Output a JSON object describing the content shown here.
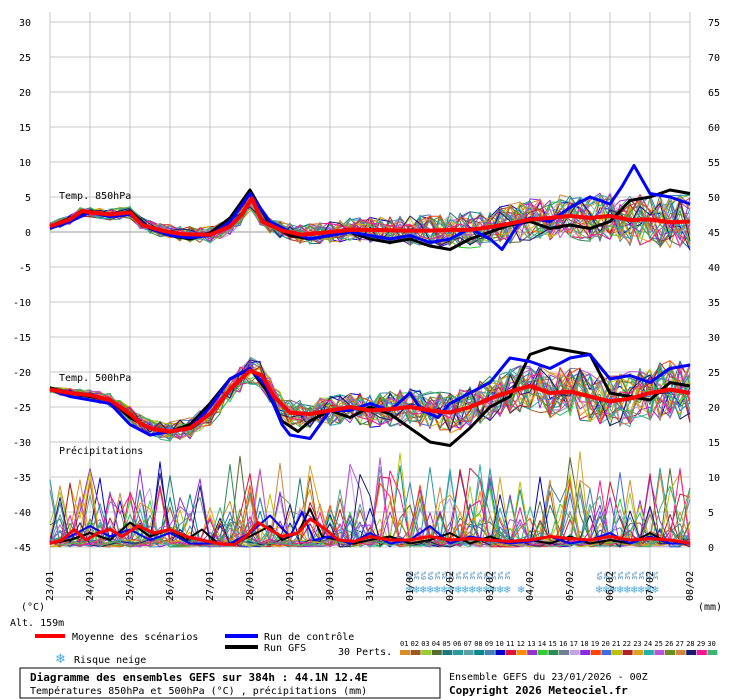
{
  "chart_data": {
    "type": "line",
    "title": "Diagramme des ensembles GEFS sur 384h : 44.1N 12.4E",
    "subtitle": "Températures 850hPa et 500hPa (°C) , précipitations (mm)",
    "run_info": "Ensemble GEFS du 23/01/2026 - 00Z",
    "copyright": "Copyright 2026 Meteociel.fr",
    "left_axis": {
      "unit": "(°C)",
      "ticks": [
        30,
        25,
        20,
        15,
        10,
        5,
        0,
        -5,
        -10,
        -15,
        -20,
        -25,
        -30,
        -35,
        -40,
        -45
      ],
      "range": [
        -45,
        30
      ]
    },
    "right_axis": {
      "unit": "(mm)",
      "ticks": [
        75,
        70,
        65,
        60,
        55,
        50,
        45,
        40,
        35,
        30,
        25,
        20,
        15,
        10,
        5,
        0
      ],
      "range": [
        0,
        75
      ]
    },
    "x_labels": [
      "23/01",
      "24/01",
      "25/01",
      "26/01",
      "27/01",
      "28/01",
      "29/01",
      "30/01",
      "31/01",
      "01/02",
      "02/02",
      "03/02",
      "04/02",
      "05/02",
      "06/02",
      "07/02",
      "08/02"
    ],
    "panel_labels": {
      "t850": "Temp. 850hPa",
      "t500": "Temp. 500hPa",
      "precip": "Précipitations"
    },
    "altitude": "Alt. 159m",
    "snow_risk": {
      "blocks": [
        {
          "start_day": 9.0,
          "labels": [
            "6%",
            "3%",
            "6%",
            "6%",
            "3%",
            "3%",
            "3%",
            "3%",
            "3%",
            "3%",
            "3%",
            "3%",
            "3%",
            "3%",
            "3%"
          ]
        },
        {
          "start_day": 11.8,
          "labels": [
            ""
          ]
        },
        {
          "start_day": 13.75,
          "labels": [
            "6%",
            "3%",
            "3%",
            "3%",
            "3%",
            "3%",
            "3%",
            "3%",
            "3%"
          ]
        }
      ]
    },
    "legend": {
      "mean": "Moyenne des scénarios",
      "control": "Run de contrôle",
      "gfs": "Run GFS",
      "snow": "Risque neige",
      "perts_label": "30 Perts.",
      "pert_numbers": [
        "01",
        "02",
        "03",
        "04",
        "05",
        "06",
        "07",
        "08",
        "09",
        "10",
        "11",
        "12",
        "13",
        "14",
        "15",
        "16",
        "17",
        "18",
        "19",
        "20",
        "21",
        "22",
        "23",
        "24",
        "25",
        "26",
        "27",
        "28",
        "29",
        "30"
      ]
    },
    "colors": {
      "mean": "#ff0000",
      "control": "#0000ff",
      "gfs": "#000000",
      "snow": "#4aa8e0",
      "perts": [
        "#d98c2a",
        "#9a5a1a",
        "#9acd32",
        "#556b2f",
        "#1e7a7a",
        "#2a9a9a",
        "#5f9ea0",
        "#008b8b",
        "#4682b4",
        "#0000cd",
        "#dc143c",
        "#ff8c00",
        "#9932cc",
        "#32cd32",
        "#2e8b57",
        "#708090",
        "#bfa6e0",
        "#8a2be2",
        "#ff4500",
        "#4169e1",
        "#c0c000",
        "#b22222",
        "#daa520",
        "#20b2aa",
        "#ba55d3",
        "#6b8e23",
        "#cd853f",
        "#191970",
        "#ff1493",
        "#3cb371"
      ]
    },
    "series": {
      "t850_mean": [
        [
          0,
          0.8
        ],
        [
          0.5,
          1.8
        ],
        [
          0.8,
          3.0
        ],
        [
          1.0,
          2.8
        ],
        [
          1.5,
          2.5
        ],
        [
          2.0,
          2.8
        ],
        [
          2.3,
          1.0
        ],
        [
          2.8,
          0.2
        ],
        [
          3.3,
          -0.3
        ],
        [
          4.0,
          -0.4
        ],
        [
          4.5,
          0.8
        ],
        [
          4.8,
          2.5
        ],
        [
          5.05,
          4.8
        ],
        [
          5.3,
          1.5
        ],
        [
          5.8,
          0.2
        ],
        [
          6.3,
          -0.4
        ],
        [
          7.0,
          0.0
        ],
        [
          7.5,
          0.3
        ],
        [
          8.0,
          0.3
        ],
        [
          9.0,
          0.2
        ],
        [
          9.5,
          0.2
        ],
        [
          10.0,
          0.3
        ],
        [
          10.5,
          0.3
        ],
        [
          11.0,
          0.7
        ],
        [
          11.5,
          1.2
        ],
        [
          12.0,
          1.8
        ],
        [
          12.5,
          2.0
        ],
        [
          13.0,
          2.3
        ],
        [
          13.5,
          2.0
        ],
        [
          14.0,
          2.3
        ],
        [
          14.5,
          1.7
        ],
        [
          15.0,
          1.8
        ],
        [
          15.5,
          1.4
        ],
        [
          16.0,
          1.5
        ]
      ],
      "t850_control": [
        [
          0,
          0.5
        ],
        [
          0.5,
          1.5
        ],
        [
          1.0,
          2.8
        ],
        [
          1.5,
          2.2
        ],
        [
          2.0,
          2.5
        ],
        [
          2.5,
          0.5
        ],
        [
          3.0,
          -0.5
        ],
        [
          3.5,
          -0.8
        ],
        [
          4.0,
          -0.5
        ],
        [
          4.5,
          1.5
        ],
        [
          5.0,
          5.5
        ],
        [
          5.5,
          1.5
        ],
        [
          6.0,
          0.0
        ],
        [
          6.5,
          -1.0
        ],
        [
          7.0,
          -0.5
        ],
        [
          7.5,
          0.0
        ],
        [
          8.0,
          -0.5
        ],
        [
          8.5,
          -1.0
        ],
        [
          9.0,
          -0.5
        ],
        [
          9.5,
          -1.5
        ],
        [
          10.0,
          -1.0
        ],
        [
          10.5,
          0.5
        ],
        [
          11.0,
          -1.0
        ],
        [
          11.3,
          -2.5
        ],
        [
          11.7,
          1.0
        ],
        [
          12.0,
          2.0
        ],
        [
          12.5,
          1.5
        ],
        [
          13.0,
          3.5
        ],
        [
          13.5,
          5.0
        ],
        [
          14.0,
          4.0
        ],
        [
          14.3,
          6.5
        ],
        [
          14.6,
          9.5
        ],
        [
          15.0,
          5.5
        ],
        [
          15.5,
          5.0
        ],
        [
          16.0,
          4.0
        ]
      ],
      "t850_gfs": [
        [
          0,
          0.8
        ],
        [
          0.5,
          2.0
        ],
        [
          1.0,
          3.0
        ],
        [
          1.5,
          2.2
        ],
        [
          2.0,
          3.0
        ],
        [
          2.5,
          0.5
        ],
        [
          3.0,
          -0.5
        ],
        [
          3.5,
          -1.0
        ],
        [
          4.0,
          -0.2
        ],
        [
          4.5,
          2.0
        ],
        [
          5.0,
          6.0
        ],
        [
          5.5,
          1.0
        ],
        [
          6.0,
          -0.5
        ],
        [
          6.5,
          -1.0
        ],
        [
          7.0,
          -0.5
        ],
        [
          7.5,
          0.0
        ],
        [
          8.0,
          -1.0
        ],
        [
          8.5,
          -1.5
        ],
        [
          9.0,
          -1.0
        ],
        [
          9.5,
          -2.0
        ],
        [
          10.0,
          -2.5
        ],
        [
          10.5,
          -1.0
        ],
        [
          11.0,
          0.0
        ],
        [
          11.5,
          1.0
        ],
        [
          12.0,
          1.5
        ],
        [
          12.5,
          0.5
        ],
        [
          13.0,
          1.0
        ],
        [
          13.5,
          0.5
        ],
        [
          14.0,
          1.5
        ],
        [
          14.5,
          4.5
        ],
        [
          15.0,
          5.0
        ],
        [
          15.5,
          6.0
        ],
        [
          16.0,
          5.5
        ]
      ],
      "t500_mean": [
        [
          0,
          -22.5
        ],
        [
          0.5,
          -23.0
        ],
        [
          1.0,
          -23.3
        ],
        [
          1.5,
          -24.0
        ],
        [
          2.0,
          -26.0
        ],
        [
          2.3,
          -27.5
        ],
        [
          2.6,
          -28.2
        ],
        [
          3.0,
          -28.5
        ],
        [
          3.5,
          -28.0
        ],
        [
          4.0,
          -26.0
        ],
        [
          4.5,
          -22.5
        ],
        [
          5.0,
          -19.8
        ],
        [
          5.3,
          -20.5
        ],
        [
          5.6,
          -23.5
        ],
        [
          6.0,
          -25.8
        ],
        [
          6.5,
          -26.0
        ],
        [
          7.0,
          -25.5
        ],
        [
          7.5,
          -25.0
        ],
        [
          8.0,
          -25.5
        ],
        [
          8.5,
          -25.3
        ],
        [
          9.0,
          -25.0
        ],
        [
          9.5,
          -25.5
        ],
        [
          10.0,
          -25.8
        ],
        [
          10.5,
          -25.0
        ],
        [
          11.0,
          -23.8
        ],
        [
          11.5,
          -22.8
        ],
        [
          12.0,
          -22.0
        ],
        [
          12.5,
          -23.0
        ],
        [
          13.0,
          -22.8
        ],
        [
          13.5,
          -23.5
        ],
        [
          14.0,
          -24.2
        ],
        [
          14.5,
          -23.8
        ],
        [
          15.0,
          -23.0
        ],
        [
          15.5,
          -22.5
        ],
        [
          16.0,
          -23.0
        ]
      ],
      "t500_control": [
        [
          0,
          -22.5
        ],
        [
          0.5,
          -23.5
        ],
        [
          1.0,
          -24.0
        ],
        [
          1.5,
          -24.5
        ],
        [
          2.0,
          -27.5
        ],
        [
          2.5,
          -29.0
        ],
        [
          3.0,
          -28.5
        ],
        [
          3.5,
          -28.0
        ],
        [
          4.0,
          -25.0
        ],
        [
          4.5,
          -21.0
        ],
        [
          5.0,
          -19.5
        ],
        [
          5.4,
          -22.0
        ],
        [
          5.8,
          -27.5
        ],
        [
          6.0,
          -29.0
        ],
        [
          6.5,
          -29.5
        ],
        [
          7.0,
          -25.5
        ],
        [
          7.5,
          -25.5
        ],
        [
          8.0,
          -24.5
        ],
        [
          8.5,
          -25.5
        ],
        [
          9.0,
          -23.0
        ],
        [
          9.3,
          -25.5
        ],
        [
          9.7,
          -26.5
        ],
        [
          10.0,
          -24.5
        ],
        [
          10.5,
          -23.0
        ],
        [
          11.0,
          -21.5
        ],
        [
          11.5,
          -18.0
        ],
        [
          12.0,
          -18.5
        ],
        [
          12.5,
          -19.5
        ],
        [
          13.0,
          -18.0
        ],
        [
          13.5,
          -17.5
        ],
        [
          14.0,
          -21.0
        ],
        [
          14.5,
          -20.5
        ],
        [
          15.0,
          -21.5
        ],
        [
          15.5,
          -19.5
        ],
        [
          16.0,
          -19.0
        ]
      ],
      "t500_gfs": [
        [
          0,
          -22.3
        ],
        [
          0.5,
          -23.0
        ],
        [
          1.0,
          -23.5
        ],
        [
          1.5,
          -24.0
        ],
        [
          2.0,
          -26.5
        ],
        [
          2.5,
          -28.0
        ],
        [
          3.0,
          -28.5
        ],
        [
          3.5,
          -27.5
        ],
        [
          4.0,
          -24.5
        ],
        [
          4.5,
          -21.0
        ],
        [
          5.0,
          -19.5
        ],
        [
          5.4,
          -22.5
        ],
        [
          5.8,
          -27.0
        ],
        [
          6.2,
          -28.5
        ],
        [
          6.5,
          -27.0
        ],
        [
          7.0,
          -25.5
        ],
        [
          7.5,
          -26.5
        ],
        [
          8.0,
          -25.0
        ],
        [
          8.5,
          -26.0
        ],
        [
          9.0,
          -28.0
        ],
        [
          9.5,
          -30.0
        ],
        [
          10.0,
          -30.5
        ],
        [
          10.5,
          -28.0
        ],
        [
          11.0,
          -25.0
        ],
        [
          11.5,
          -23.5
        ],
        [
          12.0,
          -17.5
        ],
        [
          12.5,
          -16.5
        ],
        [
          13.0,
          -17.0
        ],
        [
          13.5,
          -17.5
        ],
        [
          14.0,
          -23.0
        ],
        [
          14.5,
          -23.5
        ],
        [
          15.0,
          -24.0
        ],
        [
          15.5,
          -21.5
        ],
        [
          16.0,
          -22.0
        ]
      ],
      "precip_mean": [
        [
          0,
          0.5
        ],
        [
          0.3,
          1.0
        ],
        [
          0.6,
          2.5
        ],
        [
          0.9,
          1.0
        ],
        [
          1.2,
          2.0
        ],
        [
          1.5,
          2.5
        ],
        [
          1.8,
          1.5
        ],
        [
          2.2,
          3.0
        ],
        [
          2.6,
          2.0
        ],
        [
          3.0,
          2.5
        ],
        [
          3.4,
          1.5
        ],
        [
          3.8,
          1.0
        ],
        [
          4.2,
          0.5
        ],
        [
          4.6,
          0.3
        ],
        [
          4.9,
          1.5
        ],
        [
          5.2,
          3.5
        ],
        [
          5.5,
          2.5
        ],
        [
          5.8,
          1.5
        ],
        [
          6.2,
          2.0
        ],
        [
          6.5,
          4.0
        ],
        [
          6.9,
          2.5
        ],
        [
          7.2,
          1.0
        ],
        [
          7.6,
          0.8
        ],
        [
          8.0,
          1.5
        ],
        [
          8.5,
          1.0
        ],
        [
          9.0,
          1.0
        ],
        [
          9.5,
          1.5
        ],
        [
          10.0,
          1.0
        ],
        [
          10.5,
          1.2
        ],
        [
          11.0,
          1.0
        ],
        [
          11.5,
          0.8
        ],
        [
          12.0,
          1.0
        ],
        [
          12.5,
          1.5
        ],
        [
          13.0,
          1.2
        ],
        [
          13.5,
          1.0
        ],
        [
          14.0,
          1.5
        ],
        [
          14.5,
          1.0
        ],
        [
          15.0,
          1.2
        ],
        [
          15.5,
          1.0
        ],
        [
          16.0,
          0.5
        ]
      ],
      "precip_control": [
        [
          0,
          0.5
        ],
        [
          0.5,
          1.5
        ],
        [
          1.0,
          3.0
        ],
        [
          1.5,
          1.5
        ],
        [
          2.0,
          2.5
        ],
        [
          2.5,
          1.0
        ],
        [
          3.0,
          2.0
        ],
        [
          3.5,
          0.5
        ],
        [
          4.0,
          0.5
        ],
        [
          4.5,
          0.5
        ],
        [
          5.0,
          2.0
        ],
        [
          5.5,
          4.5
        ],
        [
          6.0,
          1.5
        ],
        [
          6.3,
          5.0
        ],
        [
          6.6,
          1.0
        ],
        [
          7.0,
          1.5
        ],
        [
          7.5,
          0.5
        ],
        [
          8.0,
          2.0
        ],
        [
          8.5,
          0.5
        ],
        [
          9.0,
          1.0
        ],
        [
          9.5,
          3.0
        ],
        [
          10.0,
          0.5
        ],
        [
          10.5,
          1.5
        ],
        [
          11.0,
          1.0
        ],
        [
          11.5,
          0.5
        ],
        [
          12.0,
          0.8
        ],
        [
          12.5,
          1.5
        ],
        [
          13.0,
          0.5
        ],
        [
          13.5,
          1.0
        ],
        [
          14.0,
          2.0
        ],
        [
          14.5,
          0.5
        ],
        [
          15.0,
          1.5
        ],
        [
          15.5,
          0.5
        ],
        [
          16.0,
          0.5
        ]
      ],
      "precip_gfs": [
        [
          0,
          0.5
        ],
        [
          0.5,
          1.0
        ],
        [
          1.0,
          2.0
        ],
        [
          1.5,
          1.0
        ],
        [
          2.0,
          3.5
        ],
        [
          2.5,
          1.5
        ],
        [
          3.0,
          2.5
        ],
        [
          3.4,
          1.0
        ],
        [
          3.8,
          2.5
        ],
        [
          4.2,
          0.5
        ],
        [
          4.6,
          0.5
        ],
        [
          5.0,
          1.5
        ],
        [
          5.5,
          3.0
        ],
        [
          5.8,
          1.0
        ],
        [
          6.2,
          2.0
        ],
        [
          6.5,
          5.5
        ],
        [
          6.8,
          1.5
        ],
        [
          7.2,
          1.0
        ],
        [
          7.6,
          0.5
        ],
        [
          8.0,
          1.0
        ],
        [
          8.5,
          1.5
        ],
        [
          9.0,
          0.5
        ],
        [
          9.5,
          1.0
        ],
        [
          10.0,
          2.0
        ],
        [
          10.5,
          0.5
        ],
        [
          11.0,
          1.5
        ],
        [
          11.5,
          0.5
        ],
        [
          12.0,
          1.0
        ],
        [
          12.5,
          0.5
        ],
        [
          13.0,
          1.5
        ],
        [
          13.5,
          0.5
        ],
        [
          14.0,
          1.0
        ],
        [
          14.5,
          0.5
        ],
        [
          15.0,
          2.0
        ],
        [
          15.5,
          0.5
        ],
        [
          16.0,
          0.5
        ]
      ]
    }
  }
}
